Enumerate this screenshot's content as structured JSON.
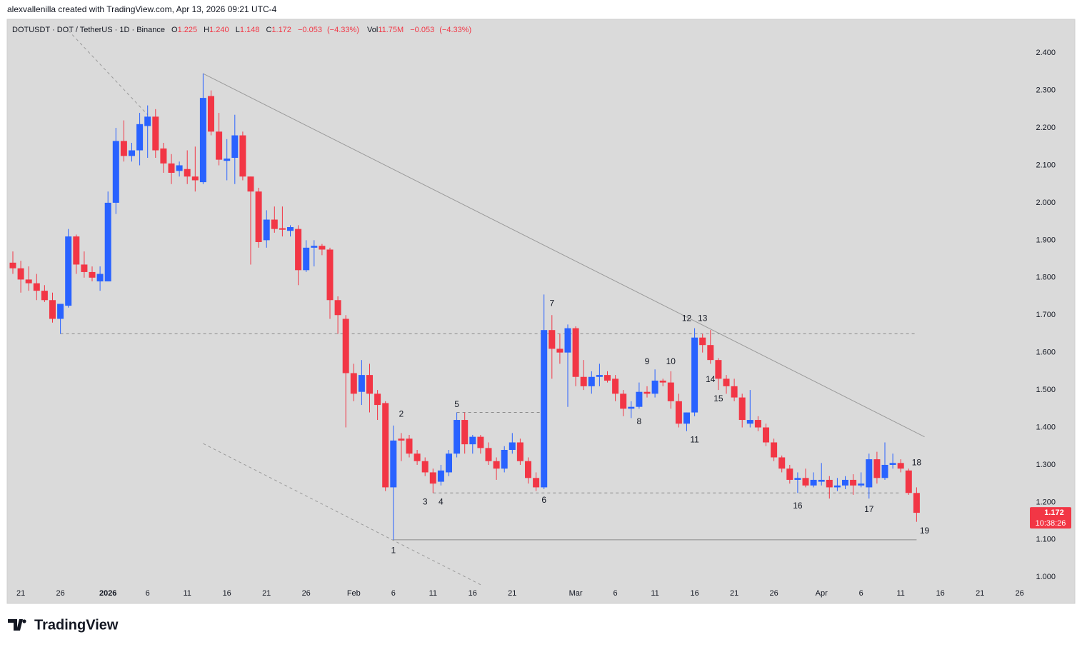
{
  "page": {
    "credit": "alexvallenilla created with TradingView.com, Apr 13, 2026 09:21 UTC-4",
    "brand": "TradingView"
  },
  "chart_data": {
    "type": "candlestick",
    "symbol": "DOTUSDT · DOT / TetherUS · 1D · Binance",
    "ohlc_keys": {
      "open": "O",
      "high": "H",
      "low": "L",
      "close": "C"
    },
    "last_labels": {
      "open": "1.225",
      "high": "1.240",
      "low": "1.148",
      "close": "1.172"
    },
    "change": "−0.053",
    "change_pct": "(−4.33%)",
    "volume_key": "Vol",
    "volume": "11.75M",
    "countdown": "10:38:26",
    "up_color": "#2962ff",
    "down_color": "#f23645",
    "categories": [
      "Dec 20",
      "Dec 21",
      "Dec 22",
      "Dec 23",
      "Dec 24",
      "Dec 25",
      "Dec 26",
      "Dec 27",
      "Dec 28",
      "Dec 29",
      "Dec 30",
      "Dec 31",
      "Jan 1",
      "Jan 2",
      "Jan 3",
      "Jan 4",
      "Jan 5",
      "Jan 6",
      "Jan 7",
      "Jan 8",
      "Jan 9",
      "Jan 10",
      "Jan 11",
      "Jan 12",
      "Jan 13",
      "Jan 14",
      "Jan 15",
      "Jan 16",
      "Jan 17",
      "Jan 18",
      "Jan 19",
      "Jan 20",
      "Jan 21",
      "Jan 22",
      "Jan 23",
      "Jan 24",
      "Jan 25",
      "Jan 26",
      "Jan 27",
      "Jan 28",
      "Jan 29",
      "Jan 30",
      "Jan 31",
      "Feb 1",
      "Feb 2",
      "Feb 3",
      "Feb 4",
      "Feb 5",
      "Feb 6",
      "Feb 7",
      "Feb 8",
      "Feb 9",
      "Feb 10",
      "Feb 11",
      "Feb 12",
      "Feb 13",
      "Feb 14",
      "Feb 15",
      "Feb 16",
      "Feb 17",
      "Feb 18",
      "Feb 19",
      "Feb 20",
      "Feb 21",
      "Feb 22",
      "Feb 23",
      "Feb 24",
      "Feb 25",
      "Feb 26",
      "Feb 27",
      "Feb 28",
      "Mar 1",
      "Mar 2",
      "Mar 3",
      "Mar 4",
      "Mar 5",
      "Mar 6",
      "Mar 7",
      "Mar 8",
      "Mar 9",
      "Mar 10",
      "Mar 11",
      "Mar 12",
      "Mar 13",
      "Mar 14",
      "Mar 15",
      "Mar 16",
      "Mar 17",
      "Mar 18",
      "Mar 19",
      "Mar 20",
      "Mar 21",
      "Mar 22",
      "Mar 23",
      "Mar 24",
      "Mar 25",
      "Mar 26",
      "Mar 27",
      "Mar 28",
      "Mar 29",
      "Mar 30",
      "Mar 31",
      "Apr 1",
      "Apr 2",
      "Apr 3",
      "Apr 4",
      "Apr 5",
      "Apr 6",
      "Apr 7",
      "Apr 8",
      "Apr 9",
      "Apr 10",
      "Apr 11",
      "Apr 12",
      "Apr 13"
    ],
    "open": [
      1.84,
      1.825,
      1.795,
      1.785,
      1.765,
      1.74,
      1.69,
      1.725,
      1.91,
      1.835,
      1.815,
      1.79,
      1.79,
      2.0,
      2.165,
      2.125,
      2.14,
      2.205,
      2.23,
      2.145,
      2.105,
      2.085,
      2.09,
      2.07,
      2.055,
      2.285,
      2.19,
      2.112,
      2.12,
      2.18,
      2.07,
      2.03,
      1.9,
      1.955,
      1.932,
      1.925,
      1.93,
      1.82,
      1.88,
      1.885,
      1.875,
      1.74,
      1.69,
      1.545,
      1.495,
      1.54,
      1.49,
      1.465,
      1.24,
      1.37,
      1.37,
      1.33,
      1.31,
      1.28,
      1.255,
      1.28,
      1.33,
      1.42,
      1.355,
      1.375,
      1.345,
      1.31,
      1.29,
      1.34,
      1.36,
      1.31,
      1.265,
      1.24,
      1.66,
      1.61,
      1.6,
      1.665,
      1.535,
      1.51,
      1.535,
      1.54,
      1.53,
      1.49,
      1.45,
      1.455,
      1.495,
      1.49,
      1.525,
      1.52,
      1.47,
      1.41,
      1.44,
      1.64,
      1.62,
      1.58,
      1.53,
      1.51,
      1.48,
      1.41,
      1.42,
      1.4,
      1.36,
      1.32,
      1.29,
      1.26,
      1.265,
      1.245,
      1.255,
      1.26,
      1.24,
      1.245,
      1.26,
      1.245,
      1.24,
      1.315,
      1.265,
      1.3,
      1.305,
      1.285,
      1.225
    ],
    "high": [
      1.87,
      1.845,
      1.83,
      1.81,
      1.78,
      1.76,
      1.73,
      1.93,
      1.915,
      1.87,
      1.83,
      1.83,
      2.03,
      2.2,
      2.22,
      2.16,
      2.24,
      2.26,
      2.25,
      2.16,
      2.13,
      2.11,
      2.14,
      2.15,
      2.345,
      2.3,
      2.24,
      2.17,
      2.235,
      2.19,
      2.07,
      2.04,
      1.98,
      1.99,
      1.99,
      1.94,
      1.94,
      1.9,
      1.9,
      1.89,
      1.88,
      1.75,
      1.7,
      1.57,
      1.58,
      1.57,
      1.5,
      1.47,
      1.405,
      1.385,
      1.38,
      1.34,
      1.32,
      1.29,
      1.3,
      1.34,
      1.44,
      1.44,
      1.38,
      1.38,
      1.36,
      1.32,
      1.35,
      1.385,
      1.37,
      1.32,
      1.28,
      1.755,
      1.7,
      1.65,
      1.675,
      1.67,
      1.58,
      1.55,
      1.57,
      1.55,
      1.54,
      1.5,
      1.47,
      1.52,
      1.51,
      1.555,
      1.53,
      1.55,
      1.49,
      1.44,
      1.665,
      1.65,
      1.66,
      1.585,
      1.54,
      1.53,
      1.49,
      1.5,
      1.43,
      1.41,
      1.37,
      1.325,
      1.3,
      1.28,
      1.29,
      1.28,
      1.305,
      1.27,
      1.265,
      1.27,
      1.275,
      1.28,
      1.33,
      1.335,
      1.36,
      1.33,
      1.315,
      1.29,
      1.24
    ],
    "low": [
      1.81,
      1.76,
      1.765,
      1.74,
      1.735,
      1.68,
      1.65,
      1.72,
      1.81,
      1.8,
      1.79,
      1.765,
      1.79,
      1.97,
      2.11,
      2.11,
      2.1,
      2.12,
      2.12,
      2.08,
      2.05,
      2.07,
      2.05,
      2.03,
      2.05,
      2.18,
      2.1,
      2.06,
      2.05,
      2.06,
      1.835,
      1.88,
      1.88,
      1.92,
      1.91,
      1.91,
      1.78,
      1.815,
      1.83,
      1.86,
      1.69,
      1.65,
      1.4,
      1.47,
      1.46,
      1.44,
      1.42,
      1.23,
      1.1,
      1.31,
      1.32,
      1.3,
      1.27,
      1.225,
      1.245,
      1.27,
      1.32,
      1.33,
      1.33,
      1.33,
      1.3,
      1.26,
      1.28,
      1.33,
      1.3,
      1.25,
      1.23,
      1.235,
      1.53,
      1.57,
      1.455,
      1.51,
      1.5,
      1.49,
      1.51,
      1.52,
      1.47,
      1.43,
      1.425,
      1.45,
      1.48,
      1.48,
      1.51,
      1.45,
      1.4,
      1.39,
      1.43,
      1.6,
      1.57,
      1.5,
      1.49,
      1.47,
      1.4,
      1.4,
      1.39,
      1.35,
      1.31,
      1.28,
      1.25,
      1.225,
      1.24,
      1.24,
      1.245,
      1.21,
      1.23,
      1.235,
      1.22,
      1.24,
      1.21,
      1.25,
      1.26,
      1.29,
      1.28,
      1.22,
      1.148
    ],
    "close": [
      1.825,
      1.795,
      1.785,
      1.765,
      1.74,
      1.69,
      1.73,
      1.91,
      1.835,
      1.815,
      1.8,
      1.81,
      2.0,
      2.165,
      2.125,
      2.14,
      2.21,
      2.23,
      2.14,
      2.105,
      2.08,
      2.1,
      2.07,
      2.06,
      2.28,
      2.19,
      2.115,
      2.118,
      2.18,
      2.07,
      2.03,
      1.895,
      1.955,
      1.93,
      1.928,
      1.935,
      1.82,
      1.88,
      1.885,
      1.875,
      1.74,
      1.7,
      1.545,
      1.49,
      1.54,
      1.49,
      1.46,
      1.24,
      1.365,
      1.365,
      1.33,
      1.31,
      1.28,
      1.25,
      1.285,
      1.33,
      1.42,
      1.355,
      1.375,
      1.345,
      1.31,
      1.29,
      1.34,
      1.36,
      1.31,
      1.265,
      1.24,
      1.66,
      1.61,
      1.6,
      1.665,
      1.535,
      1.51,
      1.535,
      1.54,
      1.525,
      1.49,
      1.45,
      1.455,
      1.495,
      1.49,
      1.525,
      1.52,
      1.47,
      1.41,
      1.44,
      1.64,
      1.62,
      1.58,
      1.53,
      1.51,
      1.48,
      1.42,
      1.42,
      1.4,
      1.36,
      1.32,
      1.29,
      1.26,
      1.265,
      1.245,
      1.26,
      1.26,
      1.24,
      1.245,
      1.26,
      1.245,
      1.25,
      1.315,
      1.265,
      1.3,
      1.305,
      1.29,
      1.225,
      1.172
    ],
    "ylim": [
      0.97,
      2.49
    ],
    "yticks": [
      {
        "value": 1.0,
        "label": "1.000"
      },
      {
        "value": 1.1,
        "label": "1.100"
      },
      {
        "value": 1.2,
        "label": "1.200"
      },
      {
        "value": 1.3,
        "label": "1.300"
      },
      {
        "value": 1.4,
        "label": "1.400"
      },
      {
        "value": 1.5,
        "label": "1.500"
      },
      {
        "value": 1.6,
        "label": "1.600"
      },
      {
        "value": 1.7,
        "label": "1.700"
      },
      {
        "value": 1.8,
        "label": "1.800"
      },
      {
        "value": 1.9,
        "label": "1.900"
      },
      {
        "value": 2.0,
        "label": "2.000"
      },
      {
        "value": 2.1,
        "label": "2.100"
      },
      {
        "value": 2.2,
        "label": "2.200"
      },
      {
        "value": 2.3,
        "label": "2.300"
      },
      {
        "value": 2.4,
        "label": "2.400"
      }
    ],
    "xticks": [
      {
        "value": "Dec 21",
        "label": "21"
      },
      {
        "value": "Dec 26",
        "label": "26"
      },
      {
        "value": "Jan 1",
        "label": "2026"
      },
      {
        "value": "Jan 6",
        "label": "6"
      },
      {
        "value": "Jan 11",
        "label": "11"
      },
      {
        "value": "Jan 16",
        "label": "16"
      },
      {
        "value": "Jan 21",
        "label": "21"
      },
      {
        "value": "Jan 26",
        "label": "26"
      },
      {
        "value": "Feb 1",
        "label": "Feb"
      },
      {
        "value": "Feb 6",
        "label": "6"
      },
      {
        "value": "Feb 11",
        "label": "11"
      },
      {
        "value": "Feb 16",
        "label": "16"
      },
      {
        "value": "Feb 21",
        "label": "21"
      },
      {
        "value": "Mar 1",
        "label": "Mar"
      },
      {
        "value": "Mar 6",
        "label": "6"
      },
      {
        "value": "Mar 11",
        "label": "11"
      },
      {
        "value": "Mar 16",
        "label": "16"
      },
      {
        "value": "Mar 21",
        "label": "21"
      },
      {
        "value": "Mar 26",
        "label": "26"
      },
      {
        "value": "Apr 1",
        "label": "Apr"
      },
      {
        "value": "Apr 6",
        "label": "6"
      },
      {
        "value": "Apr 11",
        "label": "11"
      },
      {
        "value": "Apr 16",
        "label": "16"
      },
      {
        "value": "Apr 21",
        "label": "21"
      },
      {
        "value": "Apr 26",
        "label": "26"
      }
    ],
    "lines": [
      {
        "from": [
          "Jan 13",
          2.345
        ],
        "to": [
          "Apr 14",
          1.375
        ],
        "color": "#9a9a9a",
        "dashed": false
      },
      {
        "from": [
          "Dec 27",
          2.46
        ],
        "to": [
          "Jan 6",
          2.235
        ],
        "color": "#9a9a9a",
        "dashed": true
      },
      {
        "from": [
          "Jan 13",
          1.357
        ],
        "to": [
          "Feb 17",
          0.98
        ],
        "color": "#9a9a9a",
        "dashed": true
      },
      {
        "from": [
          "Dec 26",
          1.65
        ],
        "to": [
          "Apr 13",
          1.65
        ],
        "color": "#8a8a8a",
        "dashed": true
      },
      {
        "from": [
          "Feb 14",
          1.44
        ],
        "to": [
          "Feb 25",
          1.44
        ],
        "color": "#8a8a8a",
        "dashed": true
      },
      {
        "from": [
          "Feb 11",
          1.225
        ],
        "to": [
          "Apr 11",
          1.225
        ],
        "color": "#8a8a8a",
        "dashed": true
      },
      {
        "from": [
          "Feb 6",
          1.1
        ],
        "to": [
          "Apr 13",
          1.1
        ],
        "color": "#8a8a8a",
        "dashed": false
      }
    ],
    "annotations": [
      {
        "text": "1",
        "at": "Feb 6",
        "price": 1.07
      },
      {
        "text": "2",
        "at": "Feb 7",
        "price": 1.435
      },
      {
        "text": "3",
        "at": "Feb 10",
        "price": 1.2
      },
      {
        "text": "4",
        "at": "Feb 12",
        "price": 1.2
      },
      {
        "text": "5",
        "at": "Feb 14",
        "price": 1.46
      },
      {
        "text": "6",
        "at": "Feb 25",
        "price": 1.205
      },
      {
        "text": "7",
        "at": "Feb 26",
        "price": 1.73
      },
      {
        "text": "8",
        "at": "Mar 9",
        "price": 1.415
      },
      {
        "text": "9",
        "at": "Mar 10",
        "price": 1.575
      },
      {
        "text": "10",
        "at": "Mar 13",
        "price": 1.575
      },
      {
        "text": "11",
        "at": "Mar 16",
        "price": 1.366
      },
      {
        "text": "12",
        "at": "Mar 15",
        "price": 1.69
      },
      {
        "text": "13",
        "at": "Mar 17",
        "price": 1.69
      },
      {
        "text": "14",
        "at": "Mar 18",
        "price": 1.527
      },
      {
        "text": "15",
        "at": "Mar 19",
        "price": 1.476
      },
      {
        "text": "16",
        "at": "Mar 29",
        "price": 1.19
      },
      {
        "text": "17",
        "at": "Apr 7",
        "price": 1.18
      },
      {
        "text": "18",
        "at": "Apr 13",
        "price": 1.305
      },
      {
        "text": "19",
        "at": "Apr 14",
        "price": 1.123
      }
    ]
  }
}
